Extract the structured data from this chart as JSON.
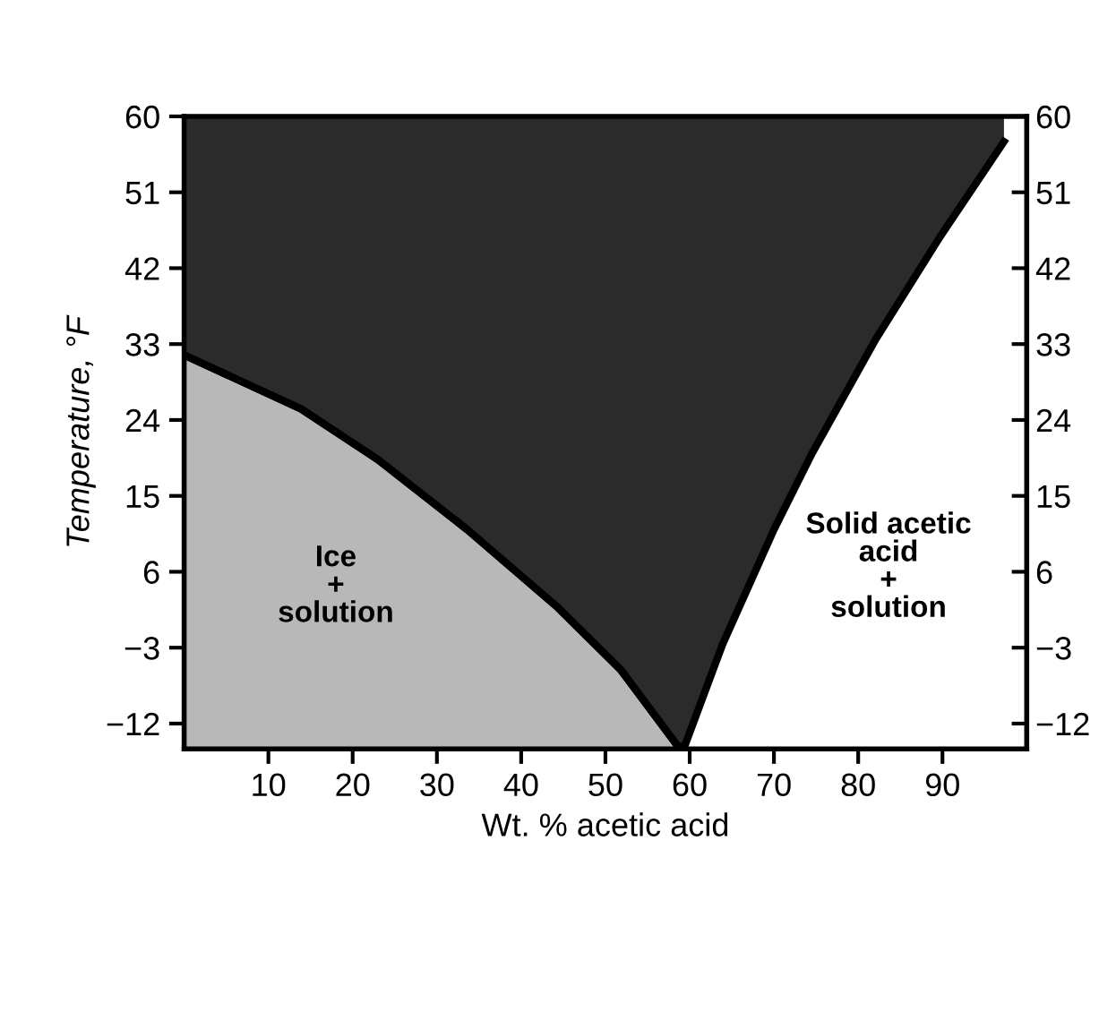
{
  "chart_data": {
    "type": "line",
    "xlabel": "Wt. % acetic acid",
    "ylabel": "Temperature, °F",
    "xlim": [
      0,
      100
    ],
    "xticks": [
      10,
      20,
      30,
      40,
      50,
      60,
      70,
      80,
      90
    ],
    "ylim": [
      -15,
      60
    ],
    "yticks": [
      {
        "value": -12,
        "label": "−12"
      },
      {
        "value": -3,
        "label": "−3"
      },
      6,
      15,
      24,
      33,
      42,
      51,
      60
    ],
    "y2lim": [
      -15,
      60
    ],
    "y2ticks": [
      {
        "value": -12,
        "label": "−12"
      },
      {
        "value": -3,
        "label": "−3"
      },
      6,
      15,
      24,
      33,
      42,
      51,
      60
    ],
    "series": [
      {
        "color": "#000000",
        "x": [
          0,
          13.9,
          23,
          33.6,
          44.2,
          51.8,
          58.6,
          59.4,
          63.9,
          70,
          74.5,
          82.1,
          89.7,
          97.3
        ],
        "values": [
          31.7,
          25.3,
          19.3,
          11,
          1.9,
          -5.6,
          -14.7,
          -14.7,
          -2.6,
          11,
          20,
          33.6,
          45.7,
          57
        ],
        "lower": [
          31.7,
          25.3,
          19.3,
          11,
          1.9,
          -5.6,
          -14.7,
          -14.7,
          -2.6,
          11,
          20,
          33.6,
          45.7,
          57
        ],
        "upper": [
          60,
          60,
          60,
          60,
          60,
          60,
          60,
          60,
          60,
          60,
          60,
          60,
          60,
          60
        ]
      },
      {
        "color": "#000000",
        "x": [
          0,
          13.9,
          23,
          33.6,
          44.2,
          51.8,
          58.6
        ],
        "values": [
          31.7,
          25.3,
          19.3,
          11,
          1.9,
          -5.6,
          -14.7
        ],
        "lower": [
          -15,
          -15,
          -15,
          -15,
          -15,
          -15,
          -15
        ],
        "upper": [
          31.7,
          25.3,
          19.3,
          11,
          1.9,
          -5.6,
          -14.7
        ]
      }
    ],
    "annotations": [
      "Ice\n+\nsolution",
      "Solid acetic\nacid\n+\nsolution"
    ],
    "grid": false,
    "legend": false
  }
}
